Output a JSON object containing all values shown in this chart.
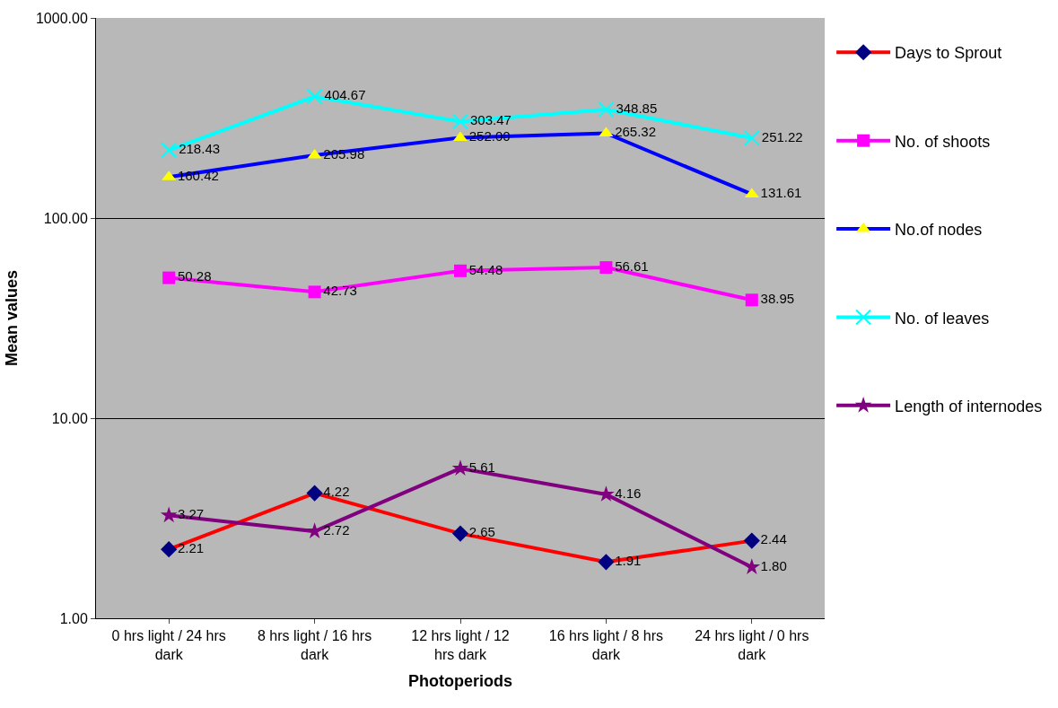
{
  "chart_data": {
    "type": "line",
    "xlabel": "Photoperiods",
    "ylabel": "Mean values",
    "categories": [
      "0 hrs light / 24 hrs dark",
      "8 hrs light / 16 hrs dark",
      "12 hrs light / 12 hrs dark",
      "16 hrs light / 8 hrs dark",
      "24 hrs light / 0 hrs dark"
    ],
    "series": [
      {
        "name": "Days to Sprout",
        "color": "#ff0000",
        "marker": "diamond",
        "colors": [
          "#000080",
          "#000080",
          "#000080",
          "#000080",
          "#000080"
        ],
        "values": [
          2.21,
          4.22,
          2.65,
          1.91,
          2.44
        ],
        "value_labels": [
          "2.21",
          "4.22",
          "2.65",
          "1.91",
          "2.44"
        ]
      },
      {
        "name": "No. of shoots",
        "color": "#ff00ff",
        "marker": "square",
        "colors": [
          "#ff00ff",
          "#ff00ff",
          "#ff00ff",
          "#ff00ff",
          "#ff00ff"
        ],
        "values": [
          50.28,
          42.73,
          54.48,
          56.61,
          38.95
        ],
        "value_labels": [
          "50.28",
          "42.73",
          "54.48",
          "56.61",
          "38.95"
        ]
      },
      {
        "name": "No.of nodes",
        "color": "#0000ff",
        "marker": "triangle",
        "colors": [
          "#ffff00",
          "#ffff00",
          "#ffff00",
          "#ffff00",
          "#ffff00"
        ],
        "values": [
          160.42,
          205.98,
          252.0,
          265.32,
          131.61
        ],
        "value_labels": [
          "160.42",
          "205.98",
          "252.00",
          "265.32",
          "131.61"
        ]
      },
      {
        "name": "No. of leaves",
        "color": "#00ffff",
        "marker": "cross",
        "colors": [
          "#00ffff",
          "#00ffff",
          "#00ffff",
          "#00ffff",
          "#00ffff"
        ],
        "values": [
          218.43,
          404.67,
          303.47,
          348.85,
          251.22
        ],
        "value_labels": [
          "218.43",
          "404.67",
          "303.47",
          "348.85",
          "251.22"
        ]
      },
      {
        "name": "Length of internodes",
        "color": "#800080",
        "marker": "star",
        "colors": [
          "#800080",
          "#800080",
          "#800080",
          "#800080",
          "#800080"
        ],
        "values": [
          3.27,
          2.72,
          5.61,
          4.16,
          1.8
        ],
        "value_labels": [
          "3.27",
          "2.72",
          "5.61",
          "4.16",
          "1.80"
        ]
      }
    ],
    "log": true,
    "ylim": [
      1,
      1000
    ],
    "yticks": [
      {
        "value": 1,
        "label": "1.00"
      },
      {
        "value": 10,
        "label": "10.00"
      },
      {
        "value": 100,
        "label": "100.00"
      },
      {
        "value": 1000,
        "label": "1000.00"
      }
    ],
    "grid": "y",
    "legend": "right"
  }
}
